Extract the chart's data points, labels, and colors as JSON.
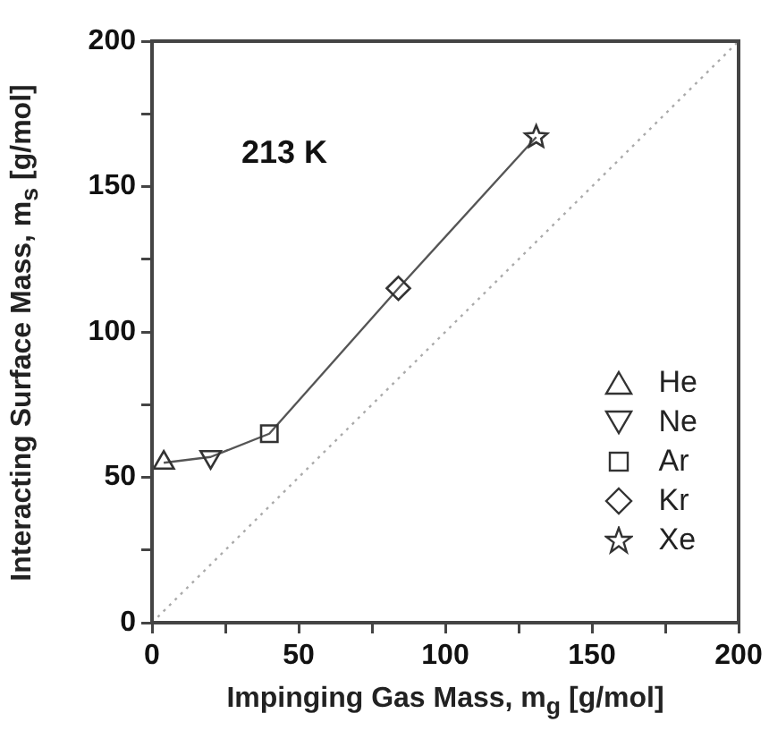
{
  "chart_data": {
    "type": "scatter",
    "xlabel": "Impinging Gas Mass, m$_{g}$ [g/mol]",
    "ylabel": "Interacting Surface Mass, m$_{s}$ [g/mol]",
    "annotations": [
      "213 K"
    ],
    "xlim": [
      0,
      200
    ],
    "ylim": [
      0,
      200
    ],
    "xticks": [
      0,
      {
        "value": 25,
        "label": null
      },
      50,
      {
        "value": 75,
        "label": null
      },
      100,
      {
        "value": 125,
        "label": null
      },
      150,
      {
        "value": 175,
        "label": null
      },
      200
    ],
    "yticks": [
      0,
      {
        "value": 25,
        "label": null
      },
      50,
      {
        "value": 75,
        "label": null
      },
      100,
      {
        "value": 125,
        "label": null
      },
      150,
      {
        "value": 175,
        "label": null
      },
      200
    ],
    "grid": false,
    "legend": "bottom right",
    "series": [
      {
        "type": "line",
        "color": "#555555",
        "x": [
          4,
          20,
          40,
          84,
          131
        ],
        "values": [
          55,
          57,
          65,
          115,
          167
        ],
        "marker": "none",
        "line_style": "solid"
      },
      {
        "type": "line",
        "color": "#aaaaaa",
        "x": [
          0,
          200
        ],
        "values": [
          0,
          200
        ],
        "marker": "none",
        "line_style": "dotted"
      },
      {
        "name": "He",
        "color": "#333333",
        "x": [
          4
        ],
        "values": [
          55
        ],
        "marker": "triangle"
      },
      {
        "name": "Ne",
        "color": "#333333",
        "x": [
          20
        ],
        "values": [
          57
        ],
        "marker": "triangle-down"
      },
      {
        "name": "Ar",
        "color": "#333333",
        "x": [
          40
        ],
        "values": [
          65
        ],
        "marker": "square"
      },
      {
        "name": "Kr",
        "color": "#333333",
        "x": [
          84
        ],
        "values": [
          115
        ],
        "marker": "diamond"
      },
      {
        "name": "Xe",
        "color": "#333333",
        "x": [
          131
        ],
        "values": [
          167
        ],
        "marker": "star"
      }
    ]
  }
}
